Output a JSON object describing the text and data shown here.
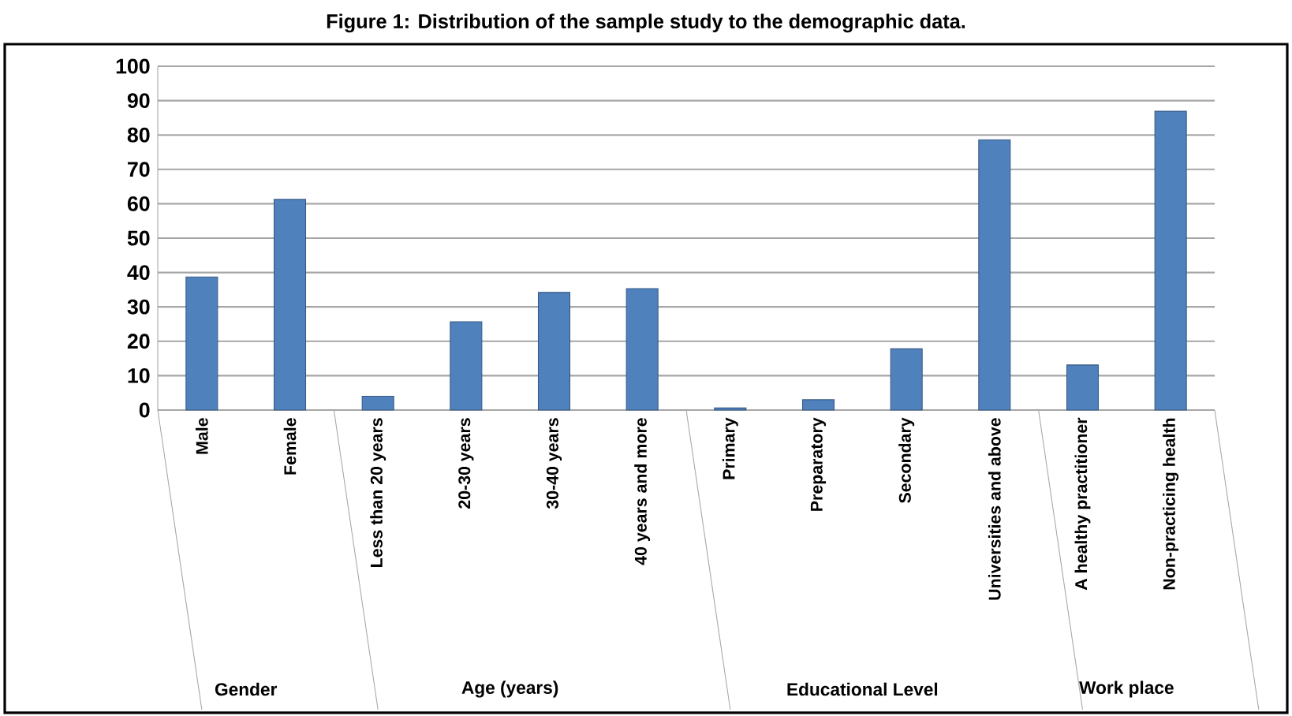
{
  "chart_data": {
    "type": "bar",
    "title": "Figure 1: Distribution of the sample study to the demographic data.",
    "categories": [
      "Male",
      "Female",
      "Less than 20 years",
      "20-30 years",
      "30-40 years",
      "40 years and more",
      "Primary",
      "Preparatory",
      "Secondary",
      "Universities and above",
      "A healthy practitioner",
      "Non-practicing health"
    ],
    "values": [
      38.7,
      61.3,
      4,
      25.7,
      34.2,
      35.3,
      0.6,
      3,
      17.8,
      78.6,
      13.1,
      86.9
    ],
    "color": "#4f81bd",
    "ylim": [
      0,
      100
    ],
    "yticks": [
      0,
      10,
      20,
      30,
      40,
      50,
      60,
      70,
      80,
      90,
      100
    ],
    "grid": "y",
    "annotations": [
      "Gender",
      "Age (years)",
      "Educational Level",
      "Work place"
    ]
  }
}
